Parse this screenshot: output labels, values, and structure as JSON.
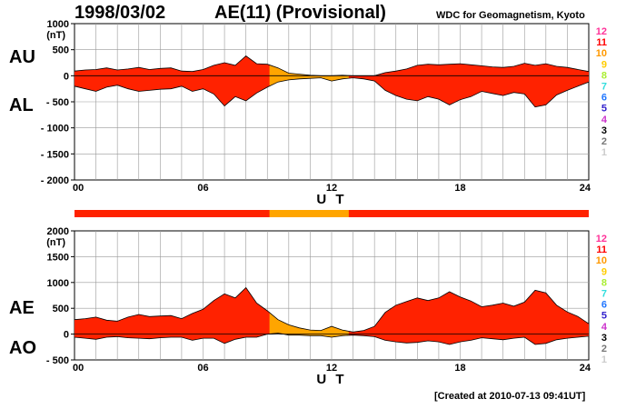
{
  "header": {
    "date": "1998/03/02",
    "title": "AE(11) (Provisional)",
    "organization": "WDC for Geomagnetism, Kyoto"
  },
  "footer": {
    "created": "[Created at 2010-07-13 09:41UT]"
  },
  "colors": {
    "fill_main": "#ff2200",
    "fill_low_count": "#ffa500",
    "outline": "#000000",
    "grid": "#999999",
    "station_count": {
      "12": "#ff3399",
      "11": "#ff0000",
      "10": "#ff9900",
      "9": "#ffcc00",
      "8": "#aaee33",
      "7": "#33dddd",
      "6": "#2277ff",
      "5": "#3322cc",
      "4": "#cc33cc",
      "3": "#000000",
      "2": "#777777",
      "1": "#cccccc"
    }
  },
  "chart_data": [
    {
      "type": "area",
      "panel": "AU / AL",
      "xlabel": "U T",
      "ylabel_unit": "(nT)",
      "series_labels": [
        "AU",
        "AL"
      ],
      "xlim": [
        0,
        24
      ],
      "x_ticks": [
        "00",
        "06",
        "12",
        "18",
        "24"
      ],
      "ylim": [
        -2000,
        1000
      ],
      "y_ticks": [
        "1000",
        "500",
        "0",
        "- 500",
        "- 1000",
        "- 1500",
        "- 2000"
      ],
      "y_tick_values": [
        1000,
        500,
        0,
        -500,
        -1000,
        -1500,
        -2000
      ],
      "station_count_legend": [
        "12",
        "11",
        "10",
        "9",
        "8",
        "7",
        "6",
        "5",
        "4",
        "3",
        "2",
        "1"
      ],
      "x": [
        0,
        0.5,
        1,
        1.5,
        2,
        2.5,
        3,
        3.5,
        4,
        4.5,
        5,
        5.5,
        6,
        6.5,
        7,
        7.5,
        8,
        8.5,
        9,
        9.5,
        10,
        10.5,
        11,
        11.5,
        12,
        12.5,
        13,
        13.5,
        14,
        14.5,
        15,
        15.5,
        16,
        16.5,
        17,
        17.5,
        18,
        18.5,
        19,
        19.5,
        20,
        20.5,
        21,
        21.5,
        22,
        22.5,
        23,
        23.5,
        24
      ],
      "series": [
        {
          "name": "AU",
          "values": [
            90,
            110,
            120,
            150,
            110,
            130,
            160,
            120,
            140,
            150,
            90,
            80,
            120,
            200,
            250,
            200,
            380,
            230,
            220,
            150,
            50,
            30,
            10,
            0,
            0,
            10,
            0,
            0,
            0,
            60,
            90,
            130,
            200,
            220,
            210,
            220,
            230,
            210,
            190,
            170,
            160,
            180,
            240,
            200,
            230,
            180,
            160,
            120,
            80
          ]
        },
        {
          "name": "AL",
          "values": [
            -200,
            -250,
            -300,
            -220,
            -180,
            -250,
            -300,
            -280,
            -260,
            -250,
            -200,
            -300,
            -250,
            -350,
            -580,
            -400,
            -480,
            -330,
            -220,
            -120,
            -80,
            -60,
            -50,
            -40,
            -100,
            -60,
            -40,
            -60,
            -100,
            -280,
            -380,
            -450,
            -480,
            -400,
            -450,
            -560,
            -460,
            -400,
            -300,
            -340,
            -380,
            -320,
            -350,
            -600,
            -560,
            -370,
            -280,
            -200,
            -120
          ]
        }
      ]
    },
    {
      "type": "area",
      "panel": "AE / AO",
      "xlabel": "U T",
      "ylabel_unit": "(nT)",
      "series_labels": [
        "AE",
        "AO"
      ],
      "xlim": [
        0,
        24
      ],
      "x_ticks": [
        "00",
        "06",
        "12",
        "18",
        "24"
      ],
      "ylim": [
        -500,
        2000
      ],
      "y_ticks": [
        "2000",
        "1500",
        "1000",
        "500",
        "0",
        "- 500"
      ],
      "y_tick_values": [
        2000,
        1500,
        1000,
        500,
        0,
        -500
      ],
      "station_count_legend": [
        "12",
        "11",
        "10",
        "9",
        "8",
        "7",
        "6",
        "5",
        "4",
        "3",
        "2",
        "1"
      ],
      "x": [
        0,
        0.5,
        1,
        1.5,
        2,
        2.5,
        3,
        3.5,
        4,
        4.5,
        5,
        5.5,
        6,
        6.5,
        7,
        7.5,
        8,
        8.5,
        9,
        9.5,
        10,
        10.5,
        11,
        11.5,
        12,
        12.5,
        13,
        13.5,
        14,
        14.5,
        15,
        15.5,
        16,
        16.5,
        17,
        17.5,
        18,
        18.5,
        19,
        19.5,
        20,
        20.5,
        21,
        21.5,
        22,
        22.5,
        23,
        23.5,
        24
      ],
      "series": [
        {
          "name": "AE",
          "values": [
            280,
            300,
            330,
            270,
            250,
            330,
            380,
            340,
            350,
            360,
            300,
            400,
            480,
            650,
            780,
            700,
            900,
            600,
            450,
            280,
            180,
            120,
            80,
            70,
            150,
            80,
            40,
            70,
            150,
            420,
            560,
            630,
            700,
            650,
            700,
            820,
            720,
            640,
            530,
            560,
            600,
            540,
            620,
            850,
            800,
            560,
            430,
            340,
            200
          ]
        },
        {
          "name": "AO",
          "values": [
            -60,
            -80,
            -100,
            -60,
            -50,
            -70,
            -80,
            -90,
            -70,
            -60,
            -60,
            -120,
            -80,
            -80,
            -180,
            -100,
            -60,
            -60,
            0,
            20,
            -20,
            -20,
            -30,
            -30,
            -60,
            -30,
            -20,
            -30,
            -50,
            -120,
            -150,
            -170,
            -160,
            -130,
            -150,
            -200,
            -150,
            -120,
            -70,
            -90,
            -110,
            -80,
            -60,
            -200,
            -180,
            -110,
            -80,
            -60,
            -40
          ]
        }
      ]
    }
  ],
  "low_count_intervals_ut": [
    [
      9.1,
      12.8
    ]
  ],
  "station_count_bar_label": ""
}
